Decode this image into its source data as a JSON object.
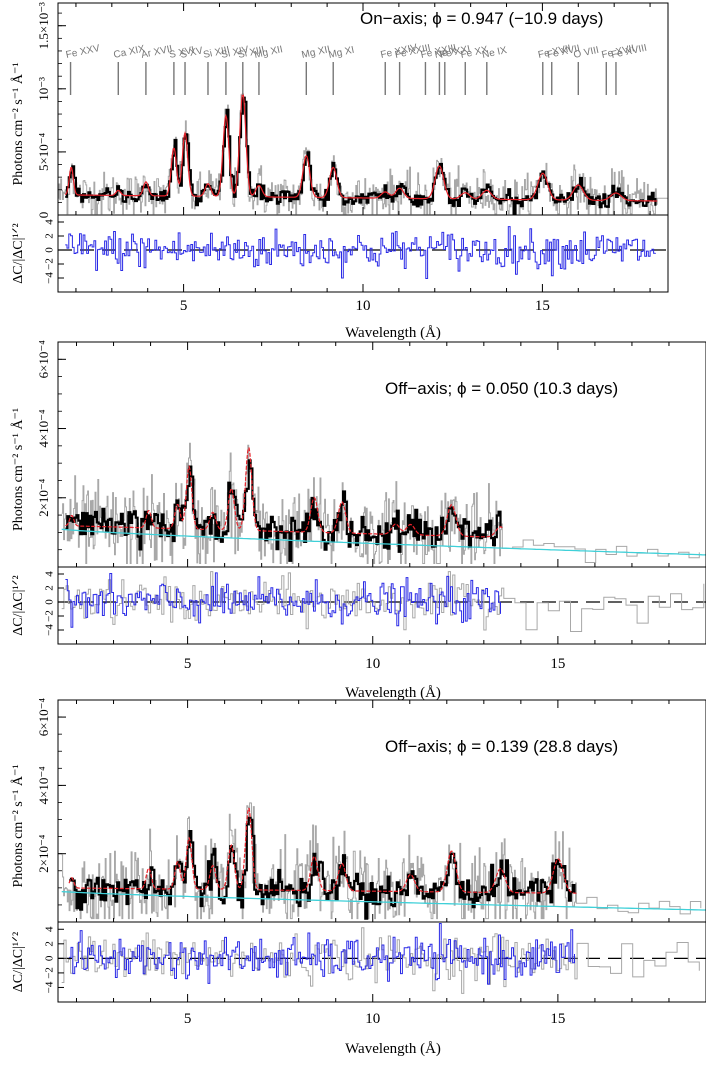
{
  "chart_data": [
    {
      "type": "line",
      "subtype": "x-ray spectrum with residuals",
      "annotation": "On−axis; ϕ = 0.947 (−10.9 days)",
      "ylabel": "Photons cm⁻² s⁻¹ Å⁻¹",
      "xlabel": "Wavelength (Å)",
      "resid_ylabel": "ΔC/|ΔC|¹ᐟ²",
      "xlim": [
        1.5,
        18.5
      ],
      "ylim": [
        0,
        0.00168
      ],
      "resid_ylim": [
        -6,
        5
      ],
      "xticks": [
        5,
        10,
        15
      ],
      "yticks": [
        {
          "value": 0,
          "label": "0"
        },
        {
          "value": 0.0005,
          "label": "5×10⁻⁴"
        },
        {
          "value": 0.001,
          "label": "10⁻³"
        },
        {
          "value": 0.0015,
          "label": "1.5×10⁻³"
        }
      ],
      "resid_yticks": [
        -4,
        -2,
        0,
        2,
        4
      ],
      "line_ids": [
        {
          "label": "Fe XXV",
          "x": 1.85
        },
        {
          "label": "Ca XIX",
          "x": 3.18
        },
        {
          "label": "Ar XVII",
          "x": 3.95
        },
        {
          "label": "S XVI",
          "x": 4.73
        },
        {
          "label": "S XV",
          "x": 5.04
        },
        {
          "label": "Si XIII",
          "x": 5.68
        },
        {
          "label": "Si XIV",
          "x": 6.18
        },
        {
          "label": "Si XIII",
          "x": 6.65
        },
        {
          "label": "Mg XII",
          "x": 7.1
        },
        {
          "label": "Mg XII",
          "x": 8.42
        },
        {
          "label": "Mg XI",
          "x": 9.17
        },
        {
          "label": "Fe XXIV",
          "x": 10.62
        },
        {
          "label": "Fe XXIII",
          "x": 11.02
        },
        {
          "label": "Fe XXIII",
          "x": 11.74
        },
        {
          "label": "Ne X",
          "x": 12.13
        },
        {
          "label": "Fe XXI",
          "x": 12.28
        },
        {
          "label": "Fe XX",
          "x": 12.85
        },
        {
          "label": "Ne IX",
          "x": 13.45
        },
        {
          "label": "Fe XVII",
          "x": 15.01
        },
        {
          "label": "Fe XVII",
          "x": 15.26
        },
        {
          "label": "O VIII",
          "x": 16.0
        },
        {
          "label": "Fe XVII",
          "x": 16.78
        },
        {
          "label": "Fe XVIII",
          "x": 17.05
        }
      ],
      "model_peaks": [
        {
          "x": 1.87,
          "height": 0.00022
        },
        {
          "x": 3.18,
          "height": 4e-05
        },
        {
          "x": 3.95,
          "height": 0.00011
        },
        {
          "x": 4.73,
          "height": 0.00038
        },
        {
          "x": 5.04,
          "height": 0.0005
        },
        {
          "x": 5.68,
          "height": 0.0001
        },
        {
          "x": 6.18,
          "height": 0.00064
        },
        {
          "x": 6.65,
          "height": 0.00082
        },
        {
          "x": 7.1,
          "height": 9e-05
        },
        {
          "x": 8.42,
          "height": 0.00033
        },
        {
          "x": 9.17,
          "height": 0.00024
        },
        {
          "x": 10.62,
          "height": 5e-05
        },
        {
          "x": 11.02,
          "height": 8e-05
        },
        {
          "x": 12.13,
          "height": 0.00026
        },
        {
          "x": 12.85,
          "height": 5e-05
        },
        {
          "x": 13.45,
          "height": 7e-05
        },
        {
          "x": 15.01,
          "height": 0.00021
        },
        {
          "x": 16.0,
          "height": 0.00012
        },
        {
          "x": 17.05,
          "height": 6e-05
        }
      ],
      "continuum": {
        "start": 0.00016,
        "end": 0.00011
      },
      "series": [
        {
          "role": "data-binned",
          "color": "#000000"
        },
        {
          "role": "data-unbinned",
          "color": "#a8a8a8"
        },
        {
          "role": "model",
          "color": "#e8222a"
        }
      ],
      "residual_color": "#2a2ae6"
    },
    {
      "type": "line",
      "subtype": "x-ray spectrum with residuals",
      "annotation": "Off−axis; ϕ = 0.050 (10.3 days)",
      "ylabel": "Photons cm⁻² s⁻¹ Å⁻¹",
      "xlabel": "Wavelength (Å)",
      "resid_ylabel": "ΔC/|ΔC|¹ᐟ²",
      "xlim": [
        1.5,
        19
      ],
      "ylim": [
        0,
        0.00065
      ],
      "resid_ylim": [
        -6,
        5
      ],
      "xticks": [
        5,
        10,
        15
      ],
      "yticks": [
        {
          "value": 0.0002,
          "label": "2×10⁻⁴"
        },
        {
          "value": 0.0004,
          "label": "4×10⁻⁴"
        },
        {
          "value": 0.0006,
          "label": "6×10⁻⁴"
        }
      ],
      "resid_yticks": [
        -4,
        -2,
        0,
        2,
        4
      ],
      "data_range": [
        1.7,
        13.5
      ],
      "grey_range": [
        1.6,
        19
      ],
      "model_peaks": [
        {
          "x": 1.87,
          "height": 3e-05
        },
        {
          "x": 3.95,
          "height": 5e-05
        },
        {
          "x": 4.73,
          "height": 7e-05
        },
        {
          "x": 5.04,
          "height": 0.00018
        },
        {
          "x": 5.68,
          "height": 5e-05
        },
        {
          "x": 6.18,
          "height": 0.00012
        },
        {
          "x": 6.65,
          "height": 0.00024
        },
        {
          "x": 8.42,
          "height": 0.0001
        },
        {
          "x": 9.17,
          "height": 9e-05
        },
        {
          "x": 10.62,
          "height": 3e-05
        },
        {
          "x": 11.02,
          "height": 3e-05
        },
        {
          "x": 12.13,
          "height": 9e-05
        },
        {
          "x": 13.45,
          "height": 3e-05
        }
      ],
      "continuum": {
        "start": 0.00012,
        "end": 7e-05
      },
      "cyan_continuum": {
        "start": 0.00011,
        "end": 3.5e-05
      },
      "series": [
        {
          "role": "data-binned",
          "color": "#000000"
        },
        {
          "role": "data-unbinned",
          "color": "#a8a8a8"
        },
        {
          "role": "model",
          "color": "#e8222a"
        },
        {
          "role": "continuum-model",
          "color": "#3fd0d8"
        }
      ],
      "residual_color": "#2a2ae6"
    },
    {
      "type": "line",
      "subtype": "x-ray spectrum with residuals",
      "annotation": "Off−axis; ϕ = 0.139 (28.8 days)",
      "ylabel": "Photons cm⁻² s⁻¹ Å⁻¹",
      "xlabel": "Wavelength (Å)",
      "resid_ylabel": "ΔC/|ΔC|¹ᐟ²",
      "xlim": [
        1.5,
        19
      ],
      "ylim": [
        0,
        0.00065
      ],
      "resid_ylim": [
        -6,
        5
      ],
      "xticks": [
        5,
        10,
        15
      ],
      "yticks": [
        {
          "value": 0.0002,
          "label": "2×10⁻⁴"
        },
        {
          "value": 0.0004,
          "label": "4×10⁻⁴"
        },
        {
          "value": 0.0006,
          "label": "6×10⁻⁴"
        }
      ],
      "resid_yticks": [
        -4,
        -2,
        0,
        2,
        4
      ],
      "data_range": [
        1.8,
        15.5
      ],
      "grey_range": [
        1.6,
        19
      ],
      "model_peaks": [
        {
          "x": 1.87,
          "height": 3e-05
        },
        {
          "x": 3.95,
          "height": 6e-05
        },
        {
          "x": 4.73,
          "height": 8e-05
        },
        {
          "x": 5.04,
          "height": 0.00015
        },
        {
          "x": 5.68,
          "height": 7e-05
        },
        {
          "x": 6.18,
          "height": 0.00013
        },
        {
          "x": 6.65,
          "height": 0.00024
        },
        {
          "x": 8.42,
          "height": 0.0001
        },
        {
          "x": 9.17,
          "height": 8e-05
        },
        {
          "x": 11.02,
          "height": 5e-05
        },
        {
          "x": 12.13,
          "height": 0.00012
        },
        {
          "x": 13.45,
          "height": 7e-05
        },
        {
          "x": 15.01,
          "height": 0.0001
        }
      ],
      "continuum": {
        "start": 0.0001,
        "end": 8e-05
      },
      "cyan_continuum": {
        "start": 9e-05,
        "end": 3.5e-05
      },
      "series": [
        {
          "role": "data-binned",
          "color": "#000000"
        },
        {
          "role": "data-unbinned",
          "color": "#a8a8a8"
        },
        {
          "role": "model",
          "color": "#e8222a"
        },
        {
          "role": "continuum-model",
          "color": "#3fd0d8"
        }
      ],
      "residual_color": "#2a2ae6"
    }
  ]
}
